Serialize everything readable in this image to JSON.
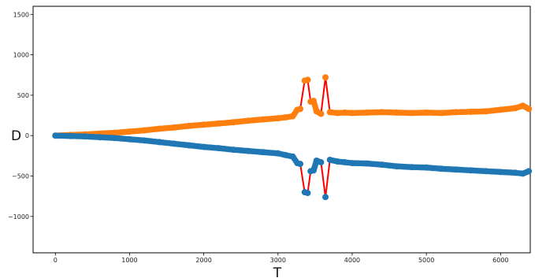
{
  "chart_data": {
    "type": "scatter",
    "xlabel": "T",
    "ylabel": "D",
    "xlim": [
      -300,
      6400
    ],
    "ylim": [
      -1450,
      1600
    ],
    "xticks": [
      0,
      1000,
      2000,
      3000,
      4000,
      5000,
      6000
    ],
    "yticks": [
      -1000,
      -500,
      0,
      500,
      1000,
      1500
    ],
    "grid": false,
    "legend": "none",
    "colors": {
      "upper": "#ff7f0e",
      "lower": "#1f77b4",
      "highlight": "#ff0000",
      "axis": "#000000"
    },
    "series": [
      {
        "color": "#ff7f0e",
        "x": [
          0,
          200,
          400,
          600,
          800,
          1000,
          1200,
          1400,
          1600,
          1800,
          2000,
          2200,
          2400,
          2600,
          2800,
          3000,
          3100,
          3200,
          3260,
          3300,
          3360,
          3400,
          3440,
          3480,
          3520,
          3580,
          3640,
          3700,
          3800,
          3900,
          4000,
          4200,
          4400,
          4600,
          4800,
          5000,
          5200,
          5400,
          5600,
          5800,
          6000,
          6200,
          6300,
          6380
        ],
        "y": [
          0,
          8,
          15,
          25,
          35,
          50,
          65,
          85,
          100,
          120,
          135,
          150,
          165,
          185,
          200,
          215,
          225,
          240,
          320,
          330,
          680,
          690,
          420,
          430,
          300,
          270,
          720,
          290,
          280,
          285,
          280,
          285,
          290,
          285,
          280,
          285,
          280,
          290,
          295,
          300,
          320,
          340,
          370,
          330
        ]
      },
      {
        "color": "#1f77b4",
        "x": [
          0,
          200,
          400,
          600,
          800,
          1000,
          1200,
          1400,
          1600,
          1800,
          2000,
          2200,
          2400,
          2600,
          2800,
          3000,
          3100,
          3200,
          3260,
          3300,
          3360,
          3400,
          3440,
          3480,
          3520,
          3580,
          3640,
          3700,
          3800,
          3900,
          4000,
          4200,
          4400,
          4600,
          4800,
          5000,
          5200,
          5400,
          5600,
          5800,
          6000,
          6200,
          6300,
          6380
        ],
        "y": [
          0,
          -5,
          -10,
          -20,
          -30,
          -45,
          -60,
          -80,
          -100,
          -120,
          -140,
          -155,
          -175,
          -190,
          -205,
          -220,
          -240,
          -260,
          -340,
          -350,
          -700,
          -710,
          -440,
          -430,
          -310,
          -330,
          -760,
          -300,
          -320,
          -330,
          -340,
          -345,
          -360,
          -380,
          -390,
          -395,
          -410,
          -420,
          -430,
          -440,
          -450,
          -460,
          -470,
          -440
        ]
      }
    ],
    "highlight_segments": [
      {
        "color": "#ff0000",
        "x": [
          3260,
          3300,
          3360,
          3400,
          3440,
          3480,
          3520,
          3580,
          3640,
          3700
        ],
        "y": [
          320,
          330,
          680,
          690,
          420,
          430,
          300,
          270,
          720,
          290
        ]
      },
      {
        "color": "#ff0000",
        "x": [
          3260,
          3300,
          3360,
          3400,
          3440,
          3480,
          3520,
          3580,
          3640,
          3700
        ],
        "y": [
          -340,
          -350,
          -700,
          -710,
          -440,
          -430,
          -310,
          -330,
          -760,
          -300
        ]
      }
    ]
  }
}
